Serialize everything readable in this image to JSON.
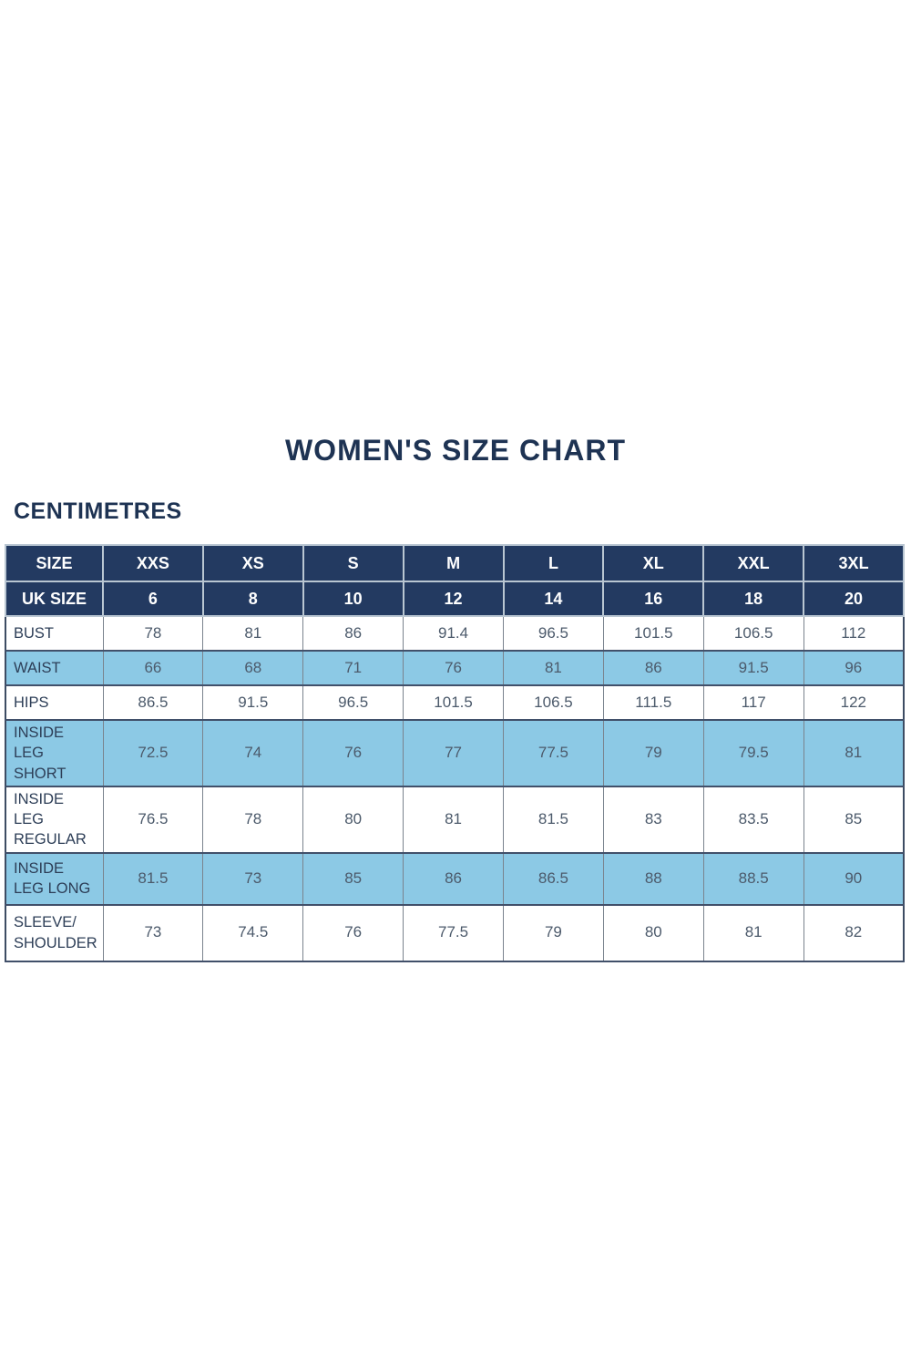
{
  "title": "WOMEN'S SIZE CHART",
  "unit_label": "CENTIMETRES",
  "colors": {
    "header_navy": "#233a61",
    "shaded_blue": "#8cc9e5",
    "title_text": "#1e3353",
    "data_text": "#4c5a6b"
  },
  "chart_data": {
    "type": "table",
    "columns": [
      "SIZE",
      "XXS",
      "XS",
      "S",
      "M",
      "L",
      "XL",
      "XXL",
      "3XL"
    ],
    "uk_size": {
      "label": "UK SIZE",
      "values": [
        "6",
        "8",
        "10",
        "12",
        "14",
        "16",
        "18",
        "20"
      ]
    },
    "rows": [
      {
        "label": "BUST",
        "shaded": false,
        "values": [
          "78",
          "81",
          "86",
          "91.4",
          "96.5",
          "101.5",
          "106.5",
          "112"
        ]
      },
      {
        "label": "WAIST",
        "shaded": true,
        "values": [
          "66",
          "68",
          "71",
          "76",
          "81",
          "86",
          "91.5",
          "96"
        ]
      },
      {
        "label": "HIPS",
        "shaded": false,
        "values": [
          "86.5",
          "91.5",
          "96.5",
          "101.5",
          "106.5",
          "111.5",
          "117",
          "122"
        ]
      },
      {
        "label": "INSIDE LEG SHORT",
        "shaded": true,
        "values": [
          "72.5",
          "74",
          "76",
          "77",
          "77.5",
          "79",
          "79.5",
          "81"
        ]
      },
      {
        "label": "INSIDE LEG REGULAR",
        "shaded": false,
        "values": [
          "76.5",
          "78",
          "80",
          "81",
          "81.5",
          "83",
          "83.5",
          "85"
        ]
      },
      {
        "label": "INSIDE LEG LONG",
        "shaded": true,
        "values": [
          "81.5",
          "73",
          "85",
          "86",
          "86.5",
          "88",
          "88.5",
          "90"
        ]
      },
      {
        "label": "SLEEVE/ SHOULDER",
        "shaded": false,
        "values": [
          "73",
          "74.5",
          "76",
          "77.5",
          "79",
          "80",
          "81",
          "82"
        ]
      }
    ]
  }
}
